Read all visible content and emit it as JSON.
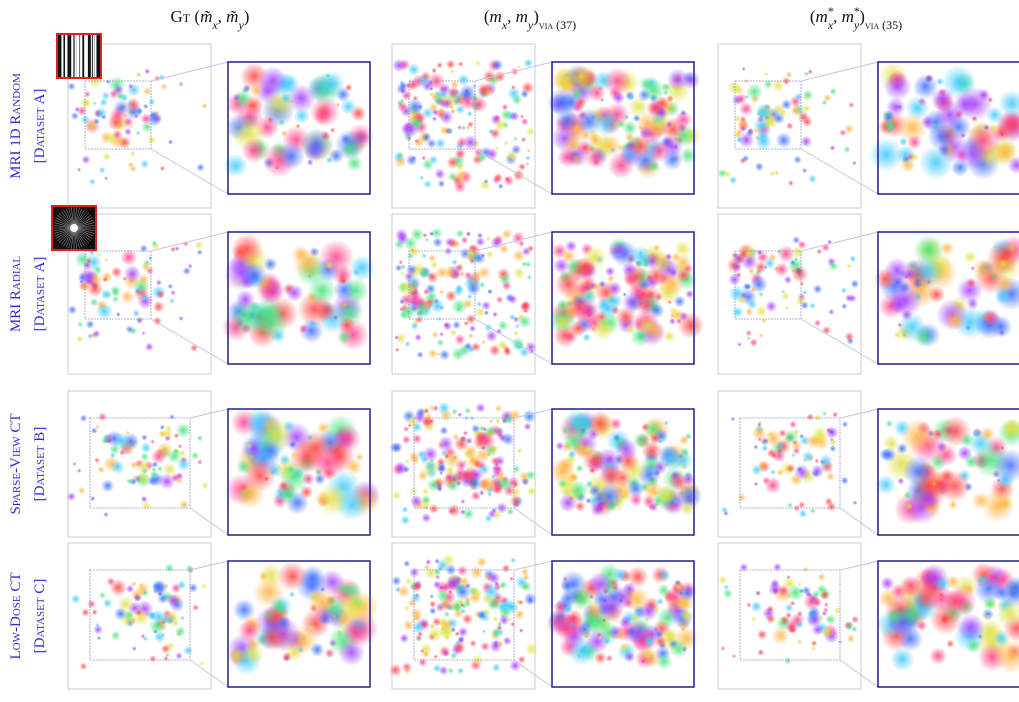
{
  "columns": [
    {
      "parts": [
        "Gt",
        " (",
        "m̃",
        "x",
        ", ",
        "m̃",
        "y",
        ")"
      ]
    },
    {
      "parts": [
        "(",
        "m",
        "x",
        ", ",
        "m",
        "y",
        ")",
        "via (37)"
      ]
    },
    {
      "parts": [
        "(",
        "m",
        "*",
        "x",
        ", ",
        "m",
        "*",
        "y",
        ")",
        "via (35)"
      ]
    }
  ],
  "rows": [
    {
      "line1": "MRI 1D Random",
      "line2": "[Dataset A]"
    },
    {
      "line1": "MRI Radial",
      "line2": "[Dataset A]"
    },
    {
      "line1": "Sparse-View CT",
      "line2": "[Dataset B]"
    },
    {
      "line1": "Low-Dose CT",
      "line2": "[Dataset C]"
    }
  ]
}
